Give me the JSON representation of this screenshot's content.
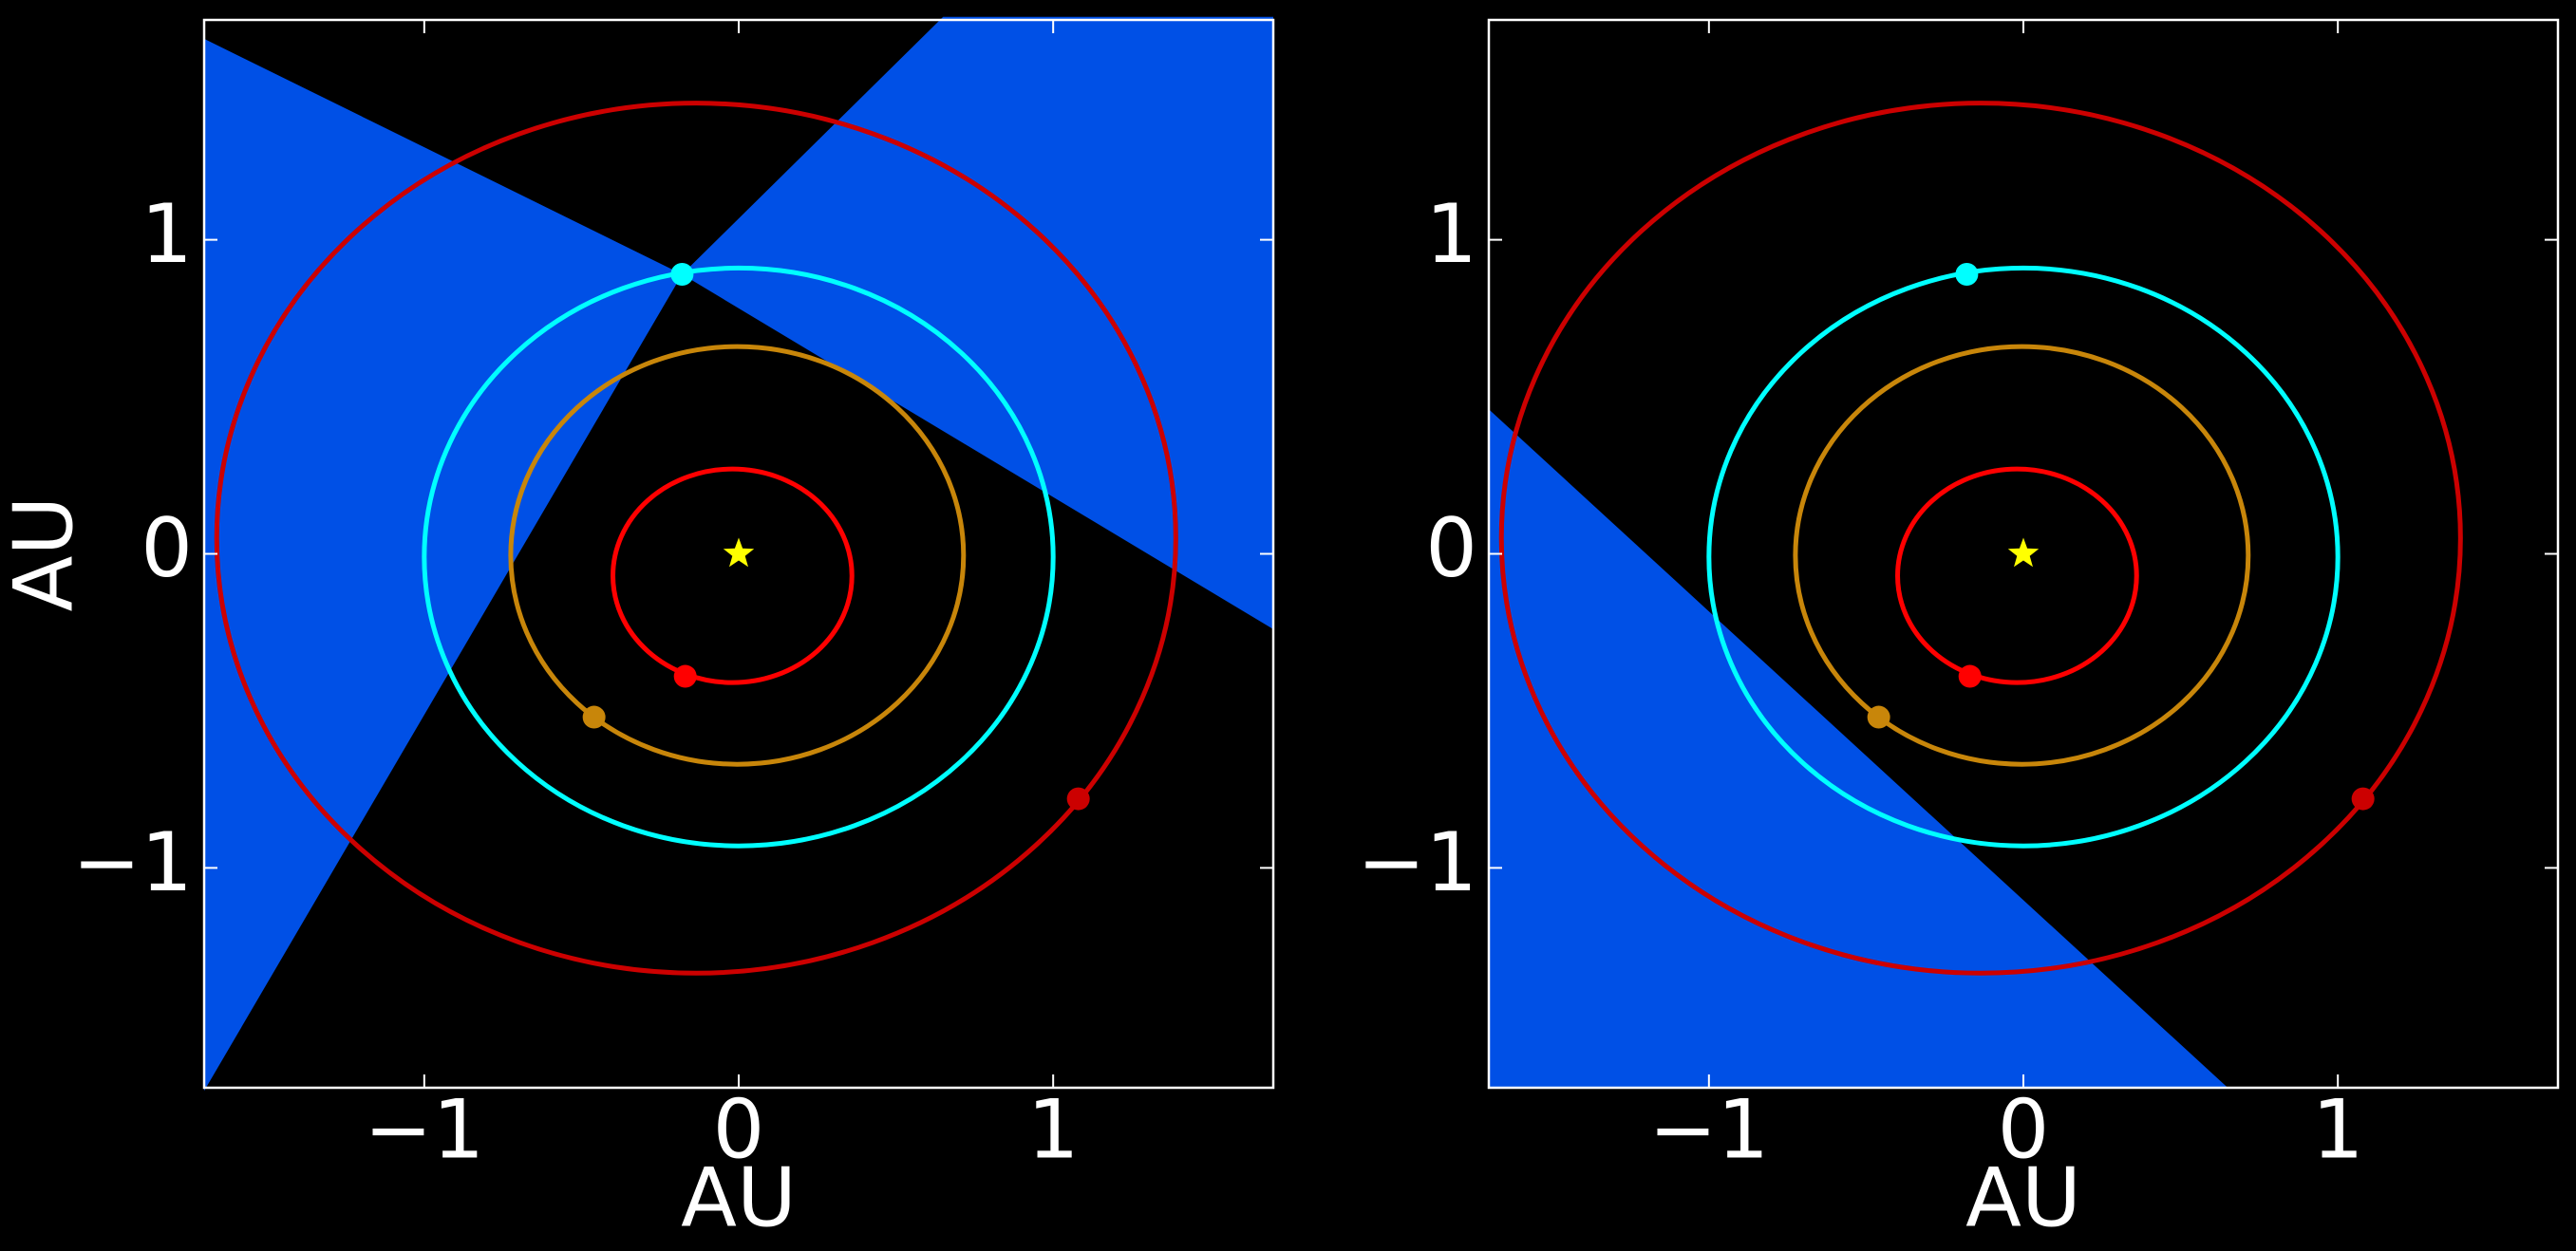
{
  "chart_data": [
    {
      "type": "orbit",
      "xlabel": "AU",
      "ylabel": "AU",
      "xlim": [
        -1.7,
        1.7
      ],
      "ylim": [
        -1.7,
        1.7
      ],
      "xticks": [
        {
          "value": -1,
          "label": "−1"
        },
        0,
        1
      ],
      "yticks": [
        {
          "value": -1,
          "label": "−1"
        },
        0,
        1
      ],
      "regions": [
        {
          "color": "#0050e6",
          "x": [
            -1.7,
            -0.18,
            -1.7
          ],
          "y": [
            1.64,
            0.89,
            -1.71
          ]
        },
        {
          "color": "#0050e6",
          "x": [
            0.65,
            1.7,
            1.7,
            -0.18
          ],
          "y": [
            1.71,
            1.71,
            -0.24,
            0.89
          ]
        }
      ],
      "orbits": [
        {
          "color": "#ff0000",
          "cx": -0.02,
          "cy": -0.07,
          "rx": 0.38,
          "ry": 0.34,
          "px": -0.17,
          "py": -0.39
        },
        {
          "color": "#c8860a",
          "cx": -0.005,
          "cy": -0.005,
          "rx": 0.72,
          "ry": 0.665,
          "px": -0.46,
          "py": -0.52
        },
        {
          "color": "#00ffff",
          "cx": 0,
          "cy": -0.01,
          "rx": 1.0,
          "ry": 0.92,
          "px": -0.18,
          "py": 0.89
        },
        {
          "color": "#cc0000",
          "cx": -0.135,
          "cy": 0.05,
          "rx": 1.525,
          "ry": 1.385,
          "px": 1.08,
          "py": -0.78
        }
      ],
      "star": {
        "x": 0,
        "y": 0,
        "color": "#ffff00"
      }
    },
    {
      "type": "orbit",
      "xlabel": "AU",
      "xlim": [
        -1.7,
        1.7
      ],
      "ylim": [
        -1.7,
        1.7
      ],
      "xticks": [
        {
          "value": -1,
          "label": "−1"
        },
        0,
        1
      ],
      "yticks": [
        {
          "value": -1,
          "label": "−1"
        },
        0,
        1
      ],
      "regions": [
        {
          "color": "#0050e6",
          "x": [
            -1.7,
            0.65,
            -1.7
          ],
          "y": [
            0.46,
            -1.7,
            -1.7
          ]
        }
      ],
      "orbits": [
        {
          "color": "#ff0000",
          "cx": -0.02,
          "cy": -0.07,
          "rx": 0.38,
          "ry": 0.34,
          "px": -0.17,
          "py": -0.39
        },
        {
          "color": "#c8860a",
          "cx": -0.005,
          "cy": -0.005,
          "rx": 0.72,
          "ry": 0.665,
          "px": -0.46,
          "py": -0.52
        },
        {
          "color": "#00ffff",
          "cx": 0,
          "cy": -0.01,
          "rx": 1.0,
          "ry": 0.92,
          "px": -0.18,
          "py": 0.89
        },
        {
          "color": "#cc0000",
          "cx": -0.135,
          "cy": 0.05,
          "rx": 1.525,
          "ry": 1.385,
          "px": 1.08,
          "py": -0.78
        }
      ],
      "star": {
        "x": 0,
        "y": 0,
        "color": "#ffff00"
      }
    }
  ]
}
